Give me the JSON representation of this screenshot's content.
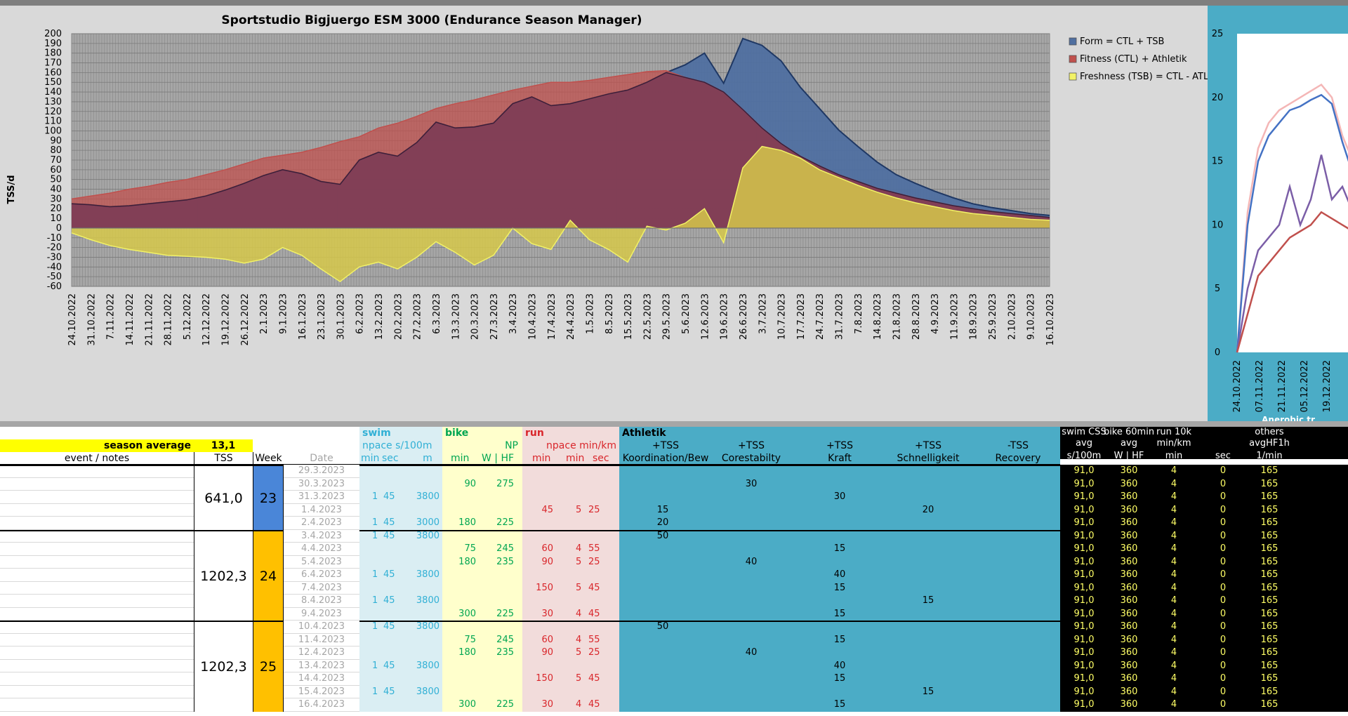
{
  "chart_data": [
    {
      "type": "area",
      "title": "Sportstudio Bigjuergo ESM 3000 (Endurance Season Manager)",
      "ylabel": "TSS/d",
      "xlabel": "",
      "ylim": [
        -60,
        200
      ],
      "yticks": [
        200,
        190,
        180,
        170,
        160,
        150,
        140,
        130,
        120,
        110,
        100,
        90,
        80,
        70,
        60,
        50,
        40,
        30,
        20,
        10,
        0,
        -10,
        -20,
        -30,
        -40,
        -50,
        -60
      ],
      "x_tick_labels": [
        "24.10.2022",
        "31.10.2022",
        "7.11.2022",
        "14.11.2022",
        "21.11.2022",
        "28.11.2022",
        "5.12.2022",
        "12.12.2022",
        "19.12.2022",
        "26.12.2022",
        "2.1.2023",
        "9.1.2023",
        "16.1.2023",
        "23.1.2023",
        "30.1.2023",
        "6.2.2023",
        "13.2.2023",
        "20.2.2023",
        "27.2.2023",
        "6.3.2023",
        "13.3.2023",
        "20.3.2023",
        "27.3.2023",
        "3.4.2023",
        "10.4.2023",
        "17.4.2023",
        "24.4.2023",
        "1.5.2023",
        "8.5.2023",
        "15.5.2023",
        "22.5.2023",
        "29.5.2023",
        "5.6.2023",
        "12.6.2023",
        "19.6.2023",
        "26.6.2023",
        "3.7.2023",
        "10.7.2023",
        "17.7.2023",
        "24.7.2023",
        "31.7.2023",
        "7.8.2023",
        "14.8.2023",
        "21.8.2023",
        "28.8.2023",
        "4.9.2023",
        "11.9.2023",
        "18.9.2023",
        "25.9.2023",
        "2.10.2023",
        "9.10.2023",
        "16.10.2023"
      ],
      "grid": true,
      "legend_position": "right",
      "series": [
        {
          "name": "Form = CTL + TSB",
          "color": "#4f6fa0",
          "values": [
            25,
            24,
            22,
            23,
            25,
            27,
            29,
            33,
            39,
            46,
            54,
            60,
            56,
            48,
            45,
            70,
            78,
            74,
            88,
            109,
            103,
            104,
            108,
            128,
            135,
            126,
            128,
            133,
            138,
            142,
            150,
            160,
            168,
            180,
            149,
            195,
            188,
            172,
            145,
            123,
            101,
            84,
            68,
            55,
            46,
            38,
            31,
            25,
            21,
            18,
            15,
            13
          ]
        },
        {
          "name": "Fitness (CTL) + Athletik",
          "color": "#c0504d",
          "values": [
            30,
            33,
            36,
            40,
            43,
            47,
            50,
            55,
            60,
            66,
            72,
            75,
            78,
            83,
            89,
            94,
            103,
            108,
            115,
            123,
            128,
            132,
            137,
            142,
            146,
            150,
            150,
            152,
            155,
            158,
            161,
            162,
            155,
            150,
            140,
            122,
            103,
            87,
            74,
            64,
            55,
            48,
            41,
            36,
            31,
            27,
            23,
            20,
            17,
            15,
            13,
            11
          ]
        },
        {
          "name": "Freshness (TSB) = CTL - ATL",
          "color": "#f2f266",
          "values": [
            -5,
            -12,
            -18,
            -22,
            -25,
            -28,
            -29,
            -30,
            -32,
            -36,
            -32,
            -20,
            -28,
            -42,
            -55,
            -40,
            -35,
            -42,
            -30,
            -14,
            -25,
            -38,
            -28,
            0,
            -16,
            -22,
            8,
            -12,
            -22,
            -35,
            2,
            -2,
            5,
            20,
            -15,
            62,
            84,
            80,
            72,
            60,
            52,
            44,
            37,
            31,
            26,
            22,
            18,
            15,
            13,
            11,
            9,
            8
          ]
        }
      ]
    },
    {
      "type": "line",
      "title": "",
      "xlabel": "",
      "ylabel": "",
      "ylim": [
        0,
        25
      ],
      "yticks": [
        25,
        20,
        15,
        10,
        5,
        0
      ],
      "x_tick_labels": [
        "24.10.2022",
        "07.11.2022",
        "21.11.2022",
        "05.12.2022",
        "19.12.2022"
      ],
      "footer_label": "Anerobic tr",
      "series": [
        {
          "color": "#f4b6b6",
          "values": [
            0,
            11,
            16,
            18,
            19,
            19.5,
            20,
            20.5,
            21,
            20,
            17,
            15
          ]
        },
        {
          "color": "#4472c4",
          "values": [
            0,
            10,
            15,
            17,
            18,
            19,
            19.3,
            19.8,
            20.2,
            19.5,
            16.5,
            14
          ]
        },
        {
          "color": "#7b5ea7",
          "values": [
            0,
            5,
            8,
            9,
            10,
            13,
            10,
            12,
            15.5,
            12,
            13,
            11
          ]
        },
        {
          "color": "#c0504d",
          "values": [
            0,
            3,
            6,
            7,
            8,
            9,
            9.5,
            10,
            11,
            10.5,
            10,
            9.5
          ]
        }
      ]
    }
  ],
  "table": {
    "season_average_label": "season average",
    "season_average_value": "13,1",
    "col_event_notes": "event / notes",
    "col_tss": "TSS",
    "col_week": "Week",
    "col_date": "Date",
    "swim": {
      "title": "swim",
      "sub": "npace s/100m",
      "c1": "min",
      "c2": "sec",
      "c3": "m"
    },
    "bike": {
      "title": "bike",
      "sub": "NP",
      "c1": "min",
      "c2": "W | HF"
    },
    "run": {
      "title": "run",
      "sub": "npace min/km",
      "c1": "min",
      "c2": "min",
      "c3": "sec"
    },
    "athletik": {
      "title": "Athletik",
      "cols": [
        {
          "top": "+TSS",
          "sub": "Koordination/Bew"
        },
        {
          "top": "+TSS",
          "sub": "Corestabilty"
        },
        {
          "top": "+TSS",
          "sub": "Kraft"
        },
        {
          "top": "+TSS",
          "sub": "Schnelligkeit"
        },
        {
          "top": "-TSS",
          "sub": "Recovery"
        }
      ]
    },
    "right": {
      "headers_top": [
        "swim CSS",
        "bike 60min",
        "run 10k",
        "",
        "others"
      ],
      "headers_mid": [
        "avg",
        "avg",
        "min/km",
        "",
        "avgHF1h"
      ],
      "headers_sub": [
        "s/100m",
        "W | HF",
        "min",
        "sec",
        "1/min"
      ],
      "row_values": [
        "91,0",
        "360",
        "4",
        "0",
        "165"
      ]
    },
    "weeks": [
      {
        "tss": "641,0",
        "week": "23",
        "color": "#4a86d8",
        "rows": [
          {
            "date": "29.3.2023"
          },
          {
            "date": "30.3.2023",
            "bike_min": "90",
            "bike_np": "275",
            "core": "30"
          },
          {
            "date": "31.3.2023",
            "swim_min": "1",
            "swim_sec": "45",
            "swim_m": "3800",
            "kraft": "30"
          },
          {
            "date": "1.4.2023",
            "run_min": "45",
            "run_pmin": "5",
            "run_psec": "25",
            "koord": "15",
            "schnell": "20"
          },
          {
            "date": "2.4.2023",
            "swim_min": "1",
            "swim_sec": "45",
            "swim_m": "3000",
            "bike_min": "180",
            "bike_np": "225",
            "koord": "20"
          }
        ]
      },
      {
        "tss": "1202,3",
        "week": "24",
        "color": "#ffc000",
        "rows": [
          {
            "date": "3.4.2023",
            "swim_min": "1",
            "swim_sec": "45",
            "swim_m": "3800",
            "koord": "50"
          },
          {
            "date": "4.4.2023",
            "bike_min": "75",
            "bike_np": "245",
            "run_min": "60",
            "run_pmin": "4",
            "run_psec": "55",
            "kraft": "15"
          },
          {
            "date": "5.4.2023",
            "bike_min": "180",
            "bike_np": "235",
            "run_min": "90",
            "run_pmin": "5",
            "run_psec": "25",
            "core": "40"
          },
          {
            "date": "6.4.2023",
            "swim_min": "1",
            "swim_sec": "45",
            "swim_m": "3800",
            "kraft": "40"
          },
          {
            "date": "7.4.2023",
            "run_min": "150",
            "run_pmin": "5",
            "run_psec": "45",
            "kraft": "15"
          },
          {
            "date": "8.4.2023",
            "swim_min": "1",
            "swim_sec": "45",
            "swim_m": "3800",
            "schnell": "15"
          },
          {
            "date": "9.4.2023",
            "bike_min": "300",
            "bike_np": "225",
            "run_min": "30",
            "run_pmin": "4",
            "run_psec": "45",
            "kraft": "15"
          }
        ]
      },
      {
        "tss": "1202,3",
        "week": "25",
        "color": "#ffc000",
        "rows": [
          {
            "date": "10.4.2023",
            "swim_min": "1",
            "swim_sec": "45",
            "swim_m": "3800",
            "koord": "50"
          },
          {
            "date": "11.4.2023",
            "bike_min": "75",
            "bike_np": "245",
            "run_min": "60",
            "run_pmin": "4",
            "run_psec": "55",
            "kraft": "15"
          },
          {
            "date": "12.4.2023",
            "bike_min": "180",
            "bike_np": "235",
            "run_min": "90",
            "run_pmin": "5",
            "run_psec": "25",
            "core": "40"
          },
          {
            "date": "13.4.2023",
            "swim_min": "1",
            "swim_sec": "45",
            "swim_m": "3800",
            "kraft": "40"
          },
          {
            "date": "14.4.2023",
            "run_min": "150",
            "run_pmin": "5",
            "run_psec": "45",
            "kraft": "15"
          },
          {
            "date": "15.4.2023",
            "swim_min": "1",
            "swim_sec": "45",
            "swim_m": "3800",
            "schnell": "15"
          },
          {
            "date": "16.4.2023",
            "bike_min": "300",
            "bike_np": "225",
            "run_min": "30",
            "run_pmin": "4",
            "run_psec": "45",
            "kraft": "15"
          }
        ]
      }
    ]
  }
}
